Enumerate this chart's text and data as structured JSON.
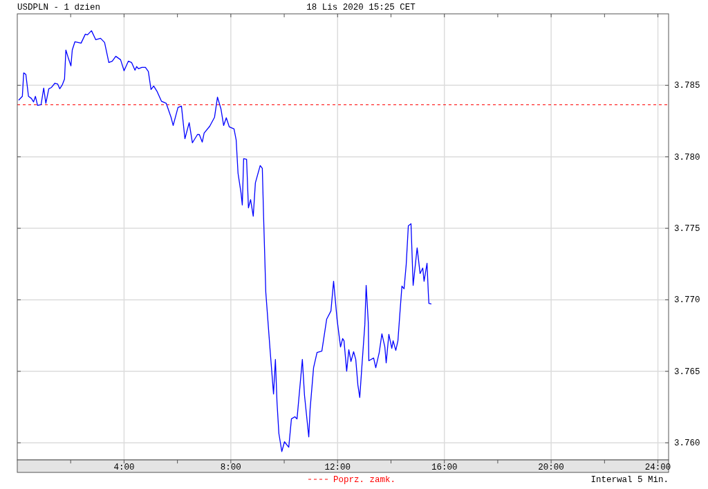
{
  "chart_data": {
    "type": "line",
    "title": "USDPLN - 1 dzien",
    "subtitle": "18 Lis 2020 15:25 CET",
    "annotations": [
      "Interwal 5 Min."
    ],
    "x": [
      0.06,
      0.19,
      0.24,
      0.32,
      0.42,
      0.53,
      0.61,
      0.68,
      0.76,
      0.89,
      0.99,
      1.07,
      1.18,
      1.28,
      1.41,
      1.51,
      1.59,
      1.69,
      1.77,
      1.82,
      1.9,
      2.01,
      2.06,
      2.16,
      2.39,
      2.55,
      2.63,
      2.78,
      2.94,
      3.12,
      3.27,
      3.43,
      3.56,
      3.69,
      3.87,
      4.0,
      4.16,
      4.28,
      4.41,
      4.47,
      4.54,
      4.67,
      4.8,
      4.91,
      5.01,
      5.11,
      5.24,
      5.4,
      5.58,
      5.76,
      5.84,
      6.02,
      6.15,
      6.28,
      6.44,
      6.56,
      6.75,
      6.82,
      6.93,
      7.0,
      7.21,
      7.39,
      7.5,
      7.63,
      7.73,
      7.83,
      7.94,
      8.12,
      8.2,
      8.27,
      8.38,
      8.43,
      8.48,
      8.59,
      8.66,
      8.74,
      8.84,
      8.92,
      9.1,
      9.18,
      9.23,
      9.31,
      9.47,
      9.6,
      9.67,
      9.73,
      9.8,
      9.91,
      10.01,
      10.17,
      10.27,
      10.4,
      10.48,
      10.68,
      10.76,
      10.92,
      10.97,
      11.1,
      11.23,
      11.41,
      11.59,
      11.75,
      11.85,
      11.98,
      12.11,
      12.19,
      12.24,
      12.34,
      12.42,
      12.5,
      12.6,
      12.68,
      12.76,
      12.83,
      12.91,
      13.02,
      13.07,
      13.15,
      13.17,
      13.35,
      13.43,
      13.56,
      13.66,
      13.77,
      13.82,
      13.92,
      14.03,
      14.08,
      14.18,
      14.26,
      14.34,
      14.41,
      14.49,
      14.57,
      14.65,
      14.75,
      14.83,
      14.88,
      14.98,
      15.09,
      15.19,
      15.24,
      15.35,
      15.4,
      15.42,
      15.5
    ],
    "series": [
      {
        "color": "#0000ff",
        "values": [
          3.78398,
          3.78423,
          3.78587,
          3.78577,
          3.78423,
          3.78408,
          3.78384,
          3.78423,
          3.7836,
          3.78364,
          3.78481,
          3.78374,
          3.78476,
          3.78485,
          3.78515,
          3.7851,
          3.78476,
          3.78505,
          3.78544,
          3.78747,
          3.78698,
          3.78636,
          3.78747,
          3.78805,
          3.78795,
          3.78858,
          3.78853,
          3.78882,
          3.78819,
          3.78829,
          3.788,
          3.7866,
          3.78669,
          3.78703,
          3.78679,
          3.78602,
          3.78669,
          3.7866,
          3.78606,
          3.78631,
          3.78616,
          3.78626,
          3.78626,
          3.78597,
          3.78471,
          3.78495,
          3.78456,
          3.78389,
          3.78374,
          3.78277,
          3.78219,
          3.78345,
          3.78355,
          3.78127,
          3.78239,
          3.78098,
          3.78156,
          3.78156,
          3.78103,
          3.78166,
          3.78214,
          3.78277,
          3.78418,
          3.78335,
          3.78219,
          3.78273,
          3.7821,
          3.78195,
          3.78118,
          3.77885,
          3.7775,
          3.77663,
          3.77987,
          3.77982,
          3.77643,
          3.77701,
          3.77585,
          3.77818,
          3.77939,
          3.77919,
          3.77566,
          3.77053,
          3.76651,
          3.76341,
          3.76583,
          3.76283,
          3.76065,
          3.75939,
          3.76007,
          3.75969,
          3.76167,
          3.76182,
          3.76167,
          3.76583,
          3.76332,
          3.76041,
          3.76235,
          3.76525,
          3.76632,
          3.76641,
          3.76864,
          3.76922,
          3.7713,
          3.76864,
          3.7667,
          3.76729,
          3.76714,
          3.76501,
          3.76651,
          3.76569,
          3.76637,
          3.76583,
          3.76404,
          3.76317,
          3.76535,
          3.76825,
          3.77101,
          3.7684,
          3.76574,
          3.76593,
          3.76525,
          3.76632,
          3.76762,
          3.7667,
          3.76559,
          3.76758,
          3.76661,
          3.76714,
          3.76646,
          3.76714,
          3.76922,
          3.77096,
          3.77077,
          3.77246,
          3.77517,
          3.77532,
          3.77101,
          3.77188,
          3.77363,
          3.77184,
          3.77222,
          3.7713,
          3.77256,
          3.77043,
          3.76975,
          3.76971
        ]
      }
    ],
    "xlim": [
      0,
      24.4
    ],
    "ylim": [
      3.7588,
      3.79
    ],
    "xticks": [
      {
        "value": 2,
        "label": null
      },
      {
        "value": 4,
        "label": "4:00"
      },
      {
        "value": 6,
        "label": null
      },
      {
        "value": 8,
        "label": "8:00"
      },
      {
        "value": 10,
        "label": null
      },
      {
        "value": 12,
        "label": "12:00"
      },
      {
        "value": 14,
        "label": null
      },
      {
        "value": 16,
        "label": "16:00"
      },
      {
        "value": 18,
        "label": null
      },
      {
        "value": 20,
        "label": "20:00"
      },
      {
        "value": 22,
        "label": null
      },
      {
        "value": 24,
        "label": "24:00"
      }
    ],
    "yticks": [
      {
        "value": 3.76,
        "label": "3.760"
      },
      3.765,
      {
        "value": 3.77,
        "label": "3.770"
      },
      3.775,
      {
        "value": 3.78,
        "label": "3.780"
      },
      3.785
    ],
    "ref_lines": [
      {
        "axis": "y",
        "value": 3.78364,
        "label": "Poprz. zamk.",
        "color": "#ff0000",
        "line_style": "dashed"
      }
    ],
    "grid": true,
    "legend": "bottom",
    "marker": "none",
    "line_style": "solid"
  }
}
